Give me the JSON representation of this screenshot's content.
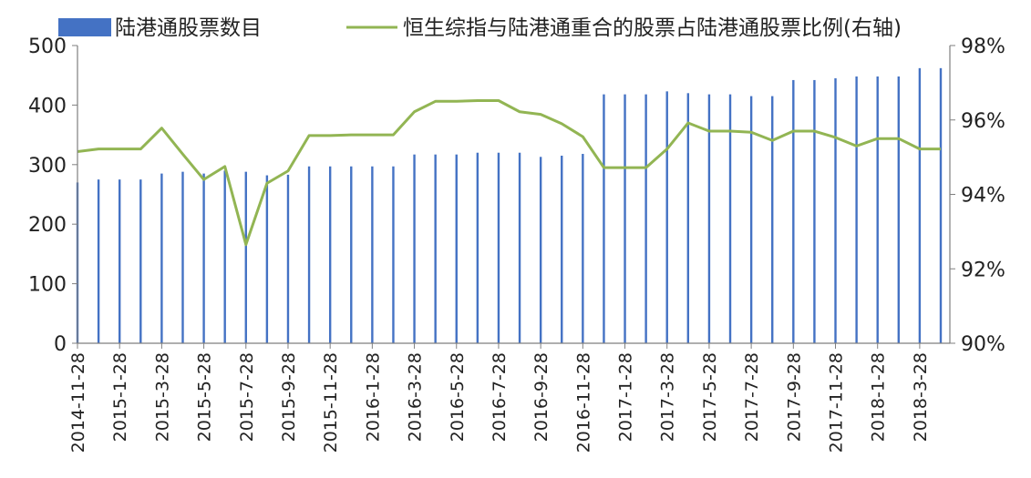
{
  "chart_data": {
    "type": "bar+line",
    "title": "",
    "xlabel": "",
    "ylabel": "",
    "legend_position": "top",
    "grid": false,
    "x": [
      "2014-11-28",
      "2014-12-28",
      "2015-1-28",
      "2015-2-28",
      "2015-3-28",
      "2015-4-28",
      "2015-5-28",
      "2015-6-28",
      "2015-7-28",
      "2015-8-28",
      "2015-9-28",
      "2015-10-28",
      "2015-11-28",
      "2015-12-28",
      "2016-1-28",
      "2016-2-28",
      "2016-3-28",
      "2016-4-28",
      "2016-5-28",
      "2016-6-28",
      "2016-7-28",
      "2016-8-28",
      "2016-9-28",
      "2016-10-28",
      "2016-11-28",
      "2016-12-28",
      "2017-1-28",
      "2017-2-28",
      "2017-3-28",
      "2017-4-28",
      "2017-5-28",
      "2017-6-28",
      "2017-7-28",
      "2017-8-28",
      "2017-9-28",
      "2017-10-28",
      "2017-11-28",
      "2017-12-28",
      "2018-1-28",
      "2018-2-28",
      "2018-3-28",
      "2018-4-28"
    ],
    "x_tick_labels": [
      "2014-11-28",
      "2015-1-28",
      "2015-3-28",
      "2015-5-28",
      "2015-7-28",
      "2015-9-28",
      "2015-11-28",
      "2016-1-28",
      "2016-3-28",
      "2016-5-28",
      "2016-7-28",
      "2016-9-28",
      "2016-11-28",
      "2017-1-28",
      "2017-3-28",
      "2017-5-28",
      "2017-7-28",
      "2017-9-28",
      "2017-11-28",
      "2018-1-28",
      "2018-3-28"
    ],
    "y_left": {
      "lim": [
        0,
        500
      ],
      "ticks": [
        0,
        100,
        200,
        300,
        400,
        500
      ],
      "tick_labels": [
        "0",
        "100",
        "200",
        "300",
        "400",
        "500"
      ]
    },
    "y_right": {
      "lim": [
        0.9,
        0.98
      ],
      "ticks": [
        0.9,
        0.92,
        0.94,
        0.96,
        0.98
      ],
      "tick_labels": [
        "90%",
        "92%",
        "94%",
        "96%",
        "98%"
      ]
    },
    "series": [
      {
        "name": "陆港通股票数目",
        "kind": "bar",
        "axis": "left",
        "color": "#4472C4",
        "values": [
          270,
          275,
          275,
          275,
          285,
          288,
          285,
          290,
          288,
          282,
          283,
          297,
          297,
          297,
          297,
          297,
          317,
          317,
          317,
          320,
          320,
          320,
          313,
          315,
          318,
          418,
          418,
          418,
          423,
          420,
          418,
          418,
          415,
          415,
          442,
          442,
          445,
          448,
          448,
          448,
          462,
          462
        ]
      },
      {
        "name": "恒生综指与陆港通重合的股票占陆港通股票比例(右轴)",
        "kind": "line",
        "axis": "right",
        "color": "#92B553",
        "values": [
          0.9515,
          0.9522,
          0.9522,
          0.9522,
          0.9578,
          0.9508,
          0.944,
          0.9475,
          0.9265,
          0.943,
          0.9463,
          0.9558,
          0.9558,
          0.956,
          0.956,
          0.956,
          0.9622,
          0.965,
          0.965,
          0.9652,
          0.9652,
          0.9622,
          0.9615,
          0.959,
          0.9555,
          0.9472,
          0.9472,
          0.9472,
          0.9522,
          0.9592,
          0.957,
          0.957,
          0.9567,
          0.9545,
          0.957,
          0.957,
          0.9553,
          0.953,
          0.955,
          0.955,
          0.9522,
          0.9522
        ]
      }
    ]
  }
}
